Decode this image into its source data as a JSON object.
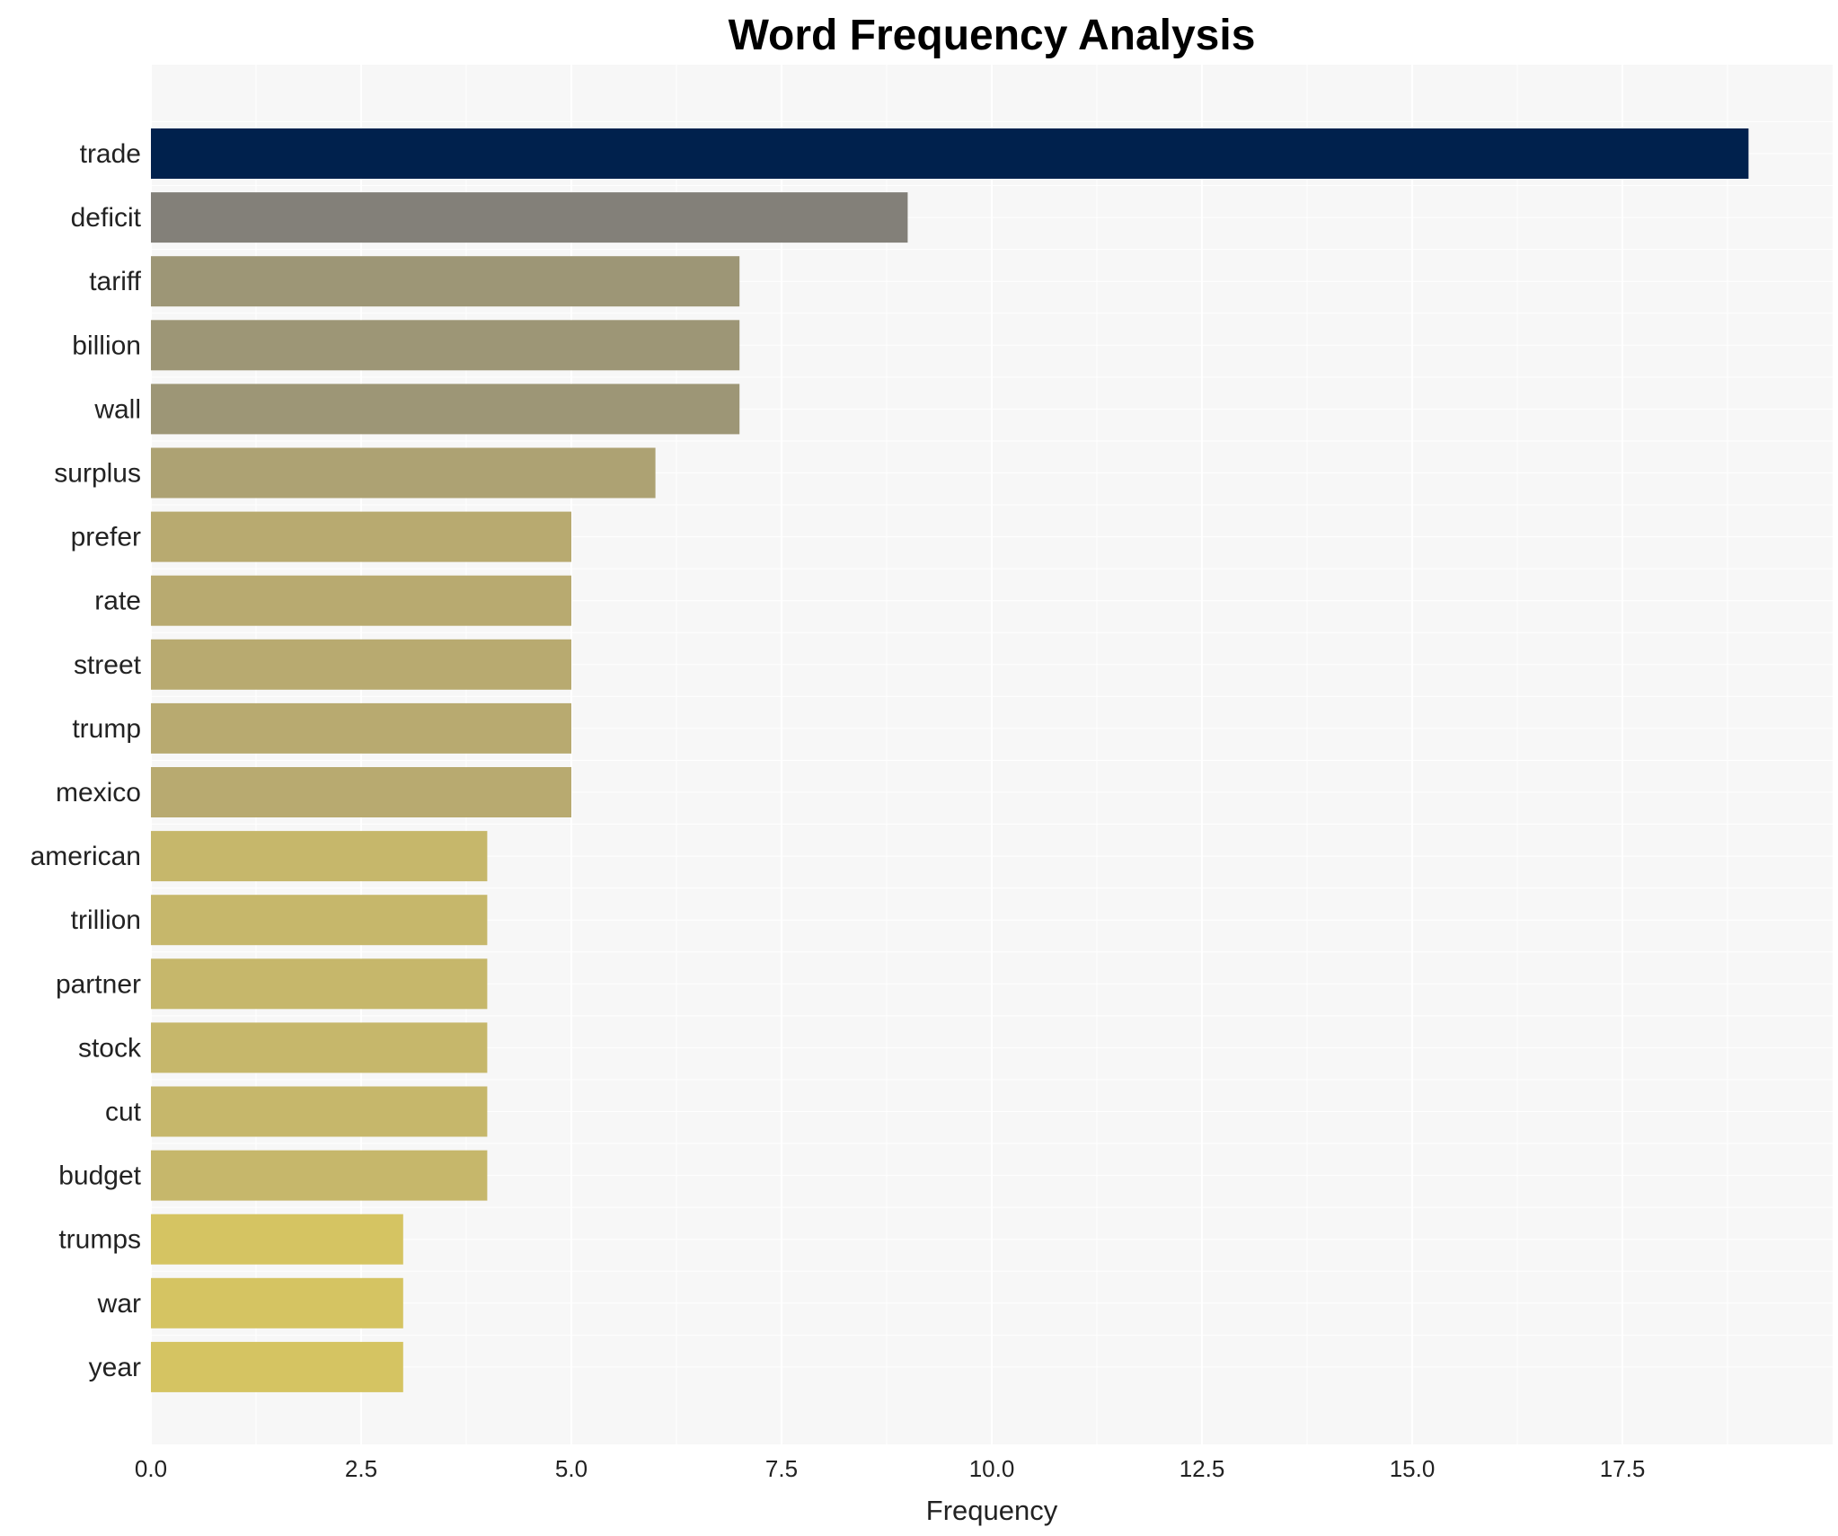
{
  "chart_data": {
    "type": "bar",
    "orientation": "horizontal",
    "title": "Word Frequency Analysis",
    "xlabel": "Frequency",
    "ylabel": "",
    "xlim": [
      0,
      19.9
    ],
    "xticks": [
      0,
      2.5,
      5,
      7.5,
      10,
      12.5,
      15,
      17.5
    ],
    "xtick_labels": [
      "0.0",
      "2.5",
      "5.0",
      "7.5",
      "10.0",
      "12.5",
      "15.0",
      "17.5"
    ],
    "grid": true,
    "categories": [
      "trade",
      "deficit",
      "tariff",
      "billion",
      "wall",
      "surplus",
      "prefer",
      "rate",
      "street",
      "trump",
      "mexico",
      "american",
      "trillion",
      "partner",
      "stock",
      "cut",
      "budget",
      "trumps",
      "war",
      "year"
    ],
    "values": [
      19,
      9,
      7,
      7,
      7,
      6,
      5,
      5,
      5,
      5,
      5,
      4,
      4,
      4,
      4,
      4,
      4,
      3,
      3,
      3
    ],
    "colors": [
      "#00214d",
      "#838079",
      "#9d9676",
      "#9d9676",
      "#9d9676",
      "#ada273",
      "#b8aa70",
      "#b8aa70",
      "#b8aa70",
      "#b8aa70",
      "#b8aa70",
      "#c6b76b",
      "#c6b76b",
      "#c6b76b",
      "#c6b76b",
      "#c6b76b",
      "#c6b76b",
      "#d5c462",
      "#d5c462",
      "#d5c462"
    ],
    "plot_background": "#f7f7f7",
    "grid_color": "#ffffff"
  }
}
